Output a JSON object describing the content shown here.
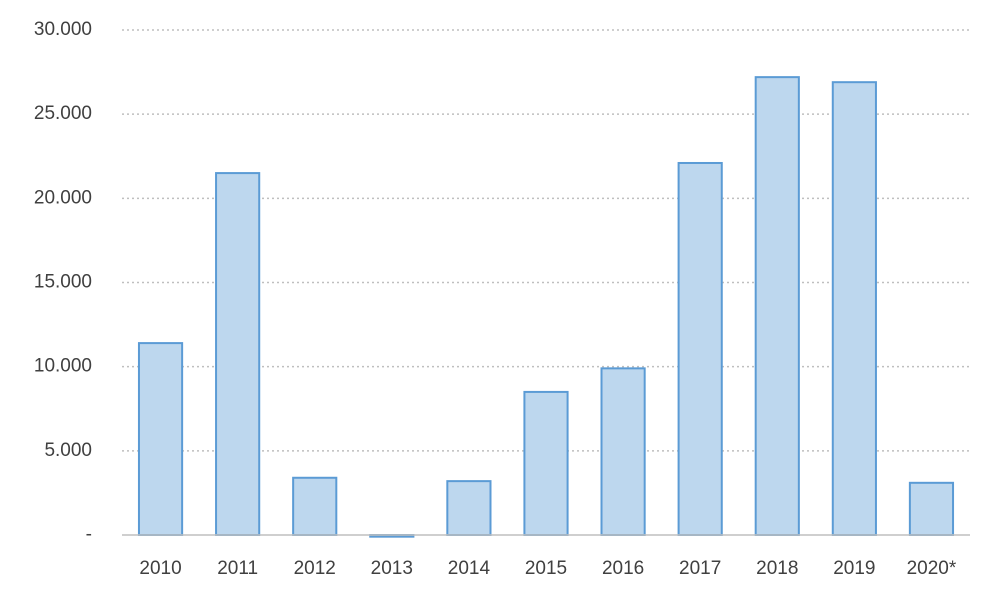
{
  "chart_data": {
    "type": "bar",
    "categories": [
      "2010",
      "2011",
      "2012",
      "2013",
      "2014",
      "2015",
      "2016",
      "2017",
      "2018",
      "2019",
      "2020*"
    ],
    "values": [
      11400,
      21500,
      3400,
      -100,
      3200,
      8500,
      9900,
      22100,
      27200,
      26900,
      3100
    ],
    "color": "#bdd7ee",
    "edge_color": "#5b9bd5",
    "ylim": [
      0,
      30000
    ],
    "yticks": [
      {
        "value": 0,
        "label": "-"
      },
      {
        "value": 5000,
        "label": "5.000"
      },
      {
        "value": 10000,
        "label": "10.000"
      },
      {
        "value": 15000,
        "label": "15.000"
      },
      {
        "value": 20000,
        "label": "20.000"
      },
      {
        "value": 25000,
        "label": "25.000"
      },
      {
        "value": 30000,
        "label": "30.000"
      }
    ],
    "grid": true
  }
}
